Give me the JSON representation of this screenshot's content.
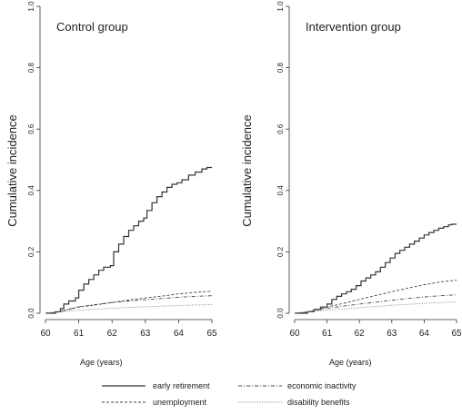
{
  "legend": {
    "entries": [
      {
        "label": "early retirement",
        "style": "solid"
      },
      {
        "label": "economic inactivity",
        "style": "dashdot"
      },
      {
        "label": "unemployment",
        "style": "dashed"
      },
      {
        "label": "disability benefits",
        "style": "dotted"
      }
    ]
  },
  "chart_data": [
    {
      "type": "line",
      "title": "Control group",
      "xlabel": "Age (years)",
      "ylabel": "Cumulative incidence",
      "xlim": [
        60,
        65
      ],
      "ylim": [
        0,
        1
      ],
      "x_ticks": [
        60,
        61,
        62,
        63,
        64,
        65
      ],
      "y_ticks": [
        "0.0",
        "0.2",
        "0.4",
        "0.6",
        "0.8",
        "1.0"
      ],
      "series": [
        {
          "name": "early retirement",
          "step": true,
          "x": [
            60,
            60.3,
            60.45,
            60.55,
            60.7,
            60.9,
            61.0,
            61.15,
            61.3,
            61.45,
            61.6,
            61.75,
            61.95,
            62.05,
            62.2,
            62.35,
            62.5,
            62.65,
            62.8,
            62.95,
            63.05,
            63.2,
            63.35,
            63.5,
            63.65,
            63.8,
            63.95,
            64.1,
            64.3,
            64.5,
            64.7,
            64.85,
            65.0
          ],
          "y": [
            0,
            0.005,
            0.015,
            0.03,
            0.04,
            0.05,
            0.075,
            0.095,
            0.11,
            0.125,
            0.14,
            0.15,
            0.155,
            0.2,
            0.225,
            0.25,
            0.27,
            0.285,
            0.3,
            0.31,
            0.335,
            0.36,
            0.38,
            0.395,
            0.41,
            0.42,
            0.425,
            0.435,
            0.45,
            0.46,
            0.47,
            0.475,
            0.475
          ]
        },
        {
          "name": "unemployment",
          "step": false,
          "x": [
            60,
            60.4,
            60.7,
            61,
            61.5,
            62,
            62.5,
            63,
            63.5,
            64,
            64.5,
            65
          ],
          "y": [
            0,
            0.004,
            0.012,
            0.02,
            0.027,
            0.035,
            0.043,
            0.05,
            0.056,
            0.063,
            0.068,
            0.072
          ]
        },
        {
          "name": "economic inactivity",
          "step": false,
          "x": [
            60,
            60.4,
            60.7,
            61,
            61.5,
            62,
            62.5,
            63,
            63.5,
            64,
            64.5,
            65
          ],
          "y": [
            0,
            0.005,
            0.013,
            0.021,
            0.028,
            0.035,
            0.04,
            0.044,
            0.048,
            0.052,
            0.055,
            0.057
          ]
        },
        {
          "name": "disability benefits",
          "step": false,
          "x": [
            60,
            60.4,
            60.7,
            61,
            61.5,
            62,
            62.5,
            63,
            63.5,
            64,
            64.5,
            65
          ],
          "y": [
            0,
            0.003,
            0.007,
            0.01,
            0.013,
            0.016,
            0.019,
            0.021,
            0.023,
            0.025,
            0.027,
            0.028
          ]
        }
      ]
    },
    {
      "type": "line",
      "title": "Intervention group",
      "xlabel": "Age (years)",
      "ylabel": "Cumulative incidence",
      "xlim": [
        60,
        65
      ],
      "ylim": [
        0,
        1
      ],
      "x_ticks": [
        60,
        61,
        62,
        63,
        64,
        65
      ],
      "y_ticks": [
        "0.0",
        "0.2",
        "0.4",
        "0.6",
        "0.8",
        "1.0"
      ],
      "series": [
        {
          "name": "early retirement",
          "step": true,
          "x": [
            60,
            60.4,
            60.6,
            60.8,
            61.0,
            61.15,
            61.3,
            61.45,
            61.6,
            61.75,
            61.9,
            62.05,
            62.2,
            62.35,
            62.5,
            62.65,
            62.8,
            62.95,
            63.1,
            63.25,
            63.4,
            63.55,
            63.7,
            63.85,
            64.0,
            64.15,
            64.3,
            64.45,
            64.6,
            64.75,
            64.85,
            65.0
          ],
          "y": [
            0,
            0.005,
            0.012,
            0.02,
            0.03,
            0.045,
            0.055,
            0.063,
            0.07,
            0.078,
            0.09,
            0.105,
            0.115,
            0.125,
            0.135,
            0.15,
            0.165,
            0.18,
            0.195,
            0.205,
            0.215,
            0.225,
            0.235,
            0.245,
            0.255,
            0.263,
            0.27,
            0.277,
            0.282,
            0.288,
            0.29,
            0.29
          ]
        },
        {
          "name": "unemployment",
          "step": false,
          "x": [
            60,
            60.4,
            60.7,
            61,
            61.5,
            62,
            62.5,
            63,
            63.5,
            64,
            64.5,
            65
          ],
          "y": [
            0,
            0.004,
            0.012,
            0.02,
            0.032,
            0.045,
            0.058,
            0.07,
            0.082,
            0.093,
            0.102,
            0.108
          ]
        },
        {
          "name": "economic inactivity",
          "step": false,
          "x": [
            60,
            60.4,
            60.7,
            61,
            61.5,
            62,
            62.5,
            63,
            63.5,
            64,
            64.5,
            65
          ],
          "y": [
            0,
            0.004,
            0.01,
            0.016,
            0.023,
            0.03,
            0.036,
            0.042,
            0.048,
            0.053,
            0.057,
            0.06
          ]
        },
        {
          "name": "disability benefits",
          "step": false,
          "x": [
            60,
            60.4,
            60.7,
            61,
            61.5,
            62,
            62.5,
            63,
            63.5,
            64,
            64.5,
            65
          ],
          "y": [
            0,
            0.003,
            0.007,
            0.01,
            0.014,
            0.018,
            0.022,
            0.026,
            0.029,
            0.032,
            0.035,
            0.037
          ]
        }
      ]
    }
  ]
}
